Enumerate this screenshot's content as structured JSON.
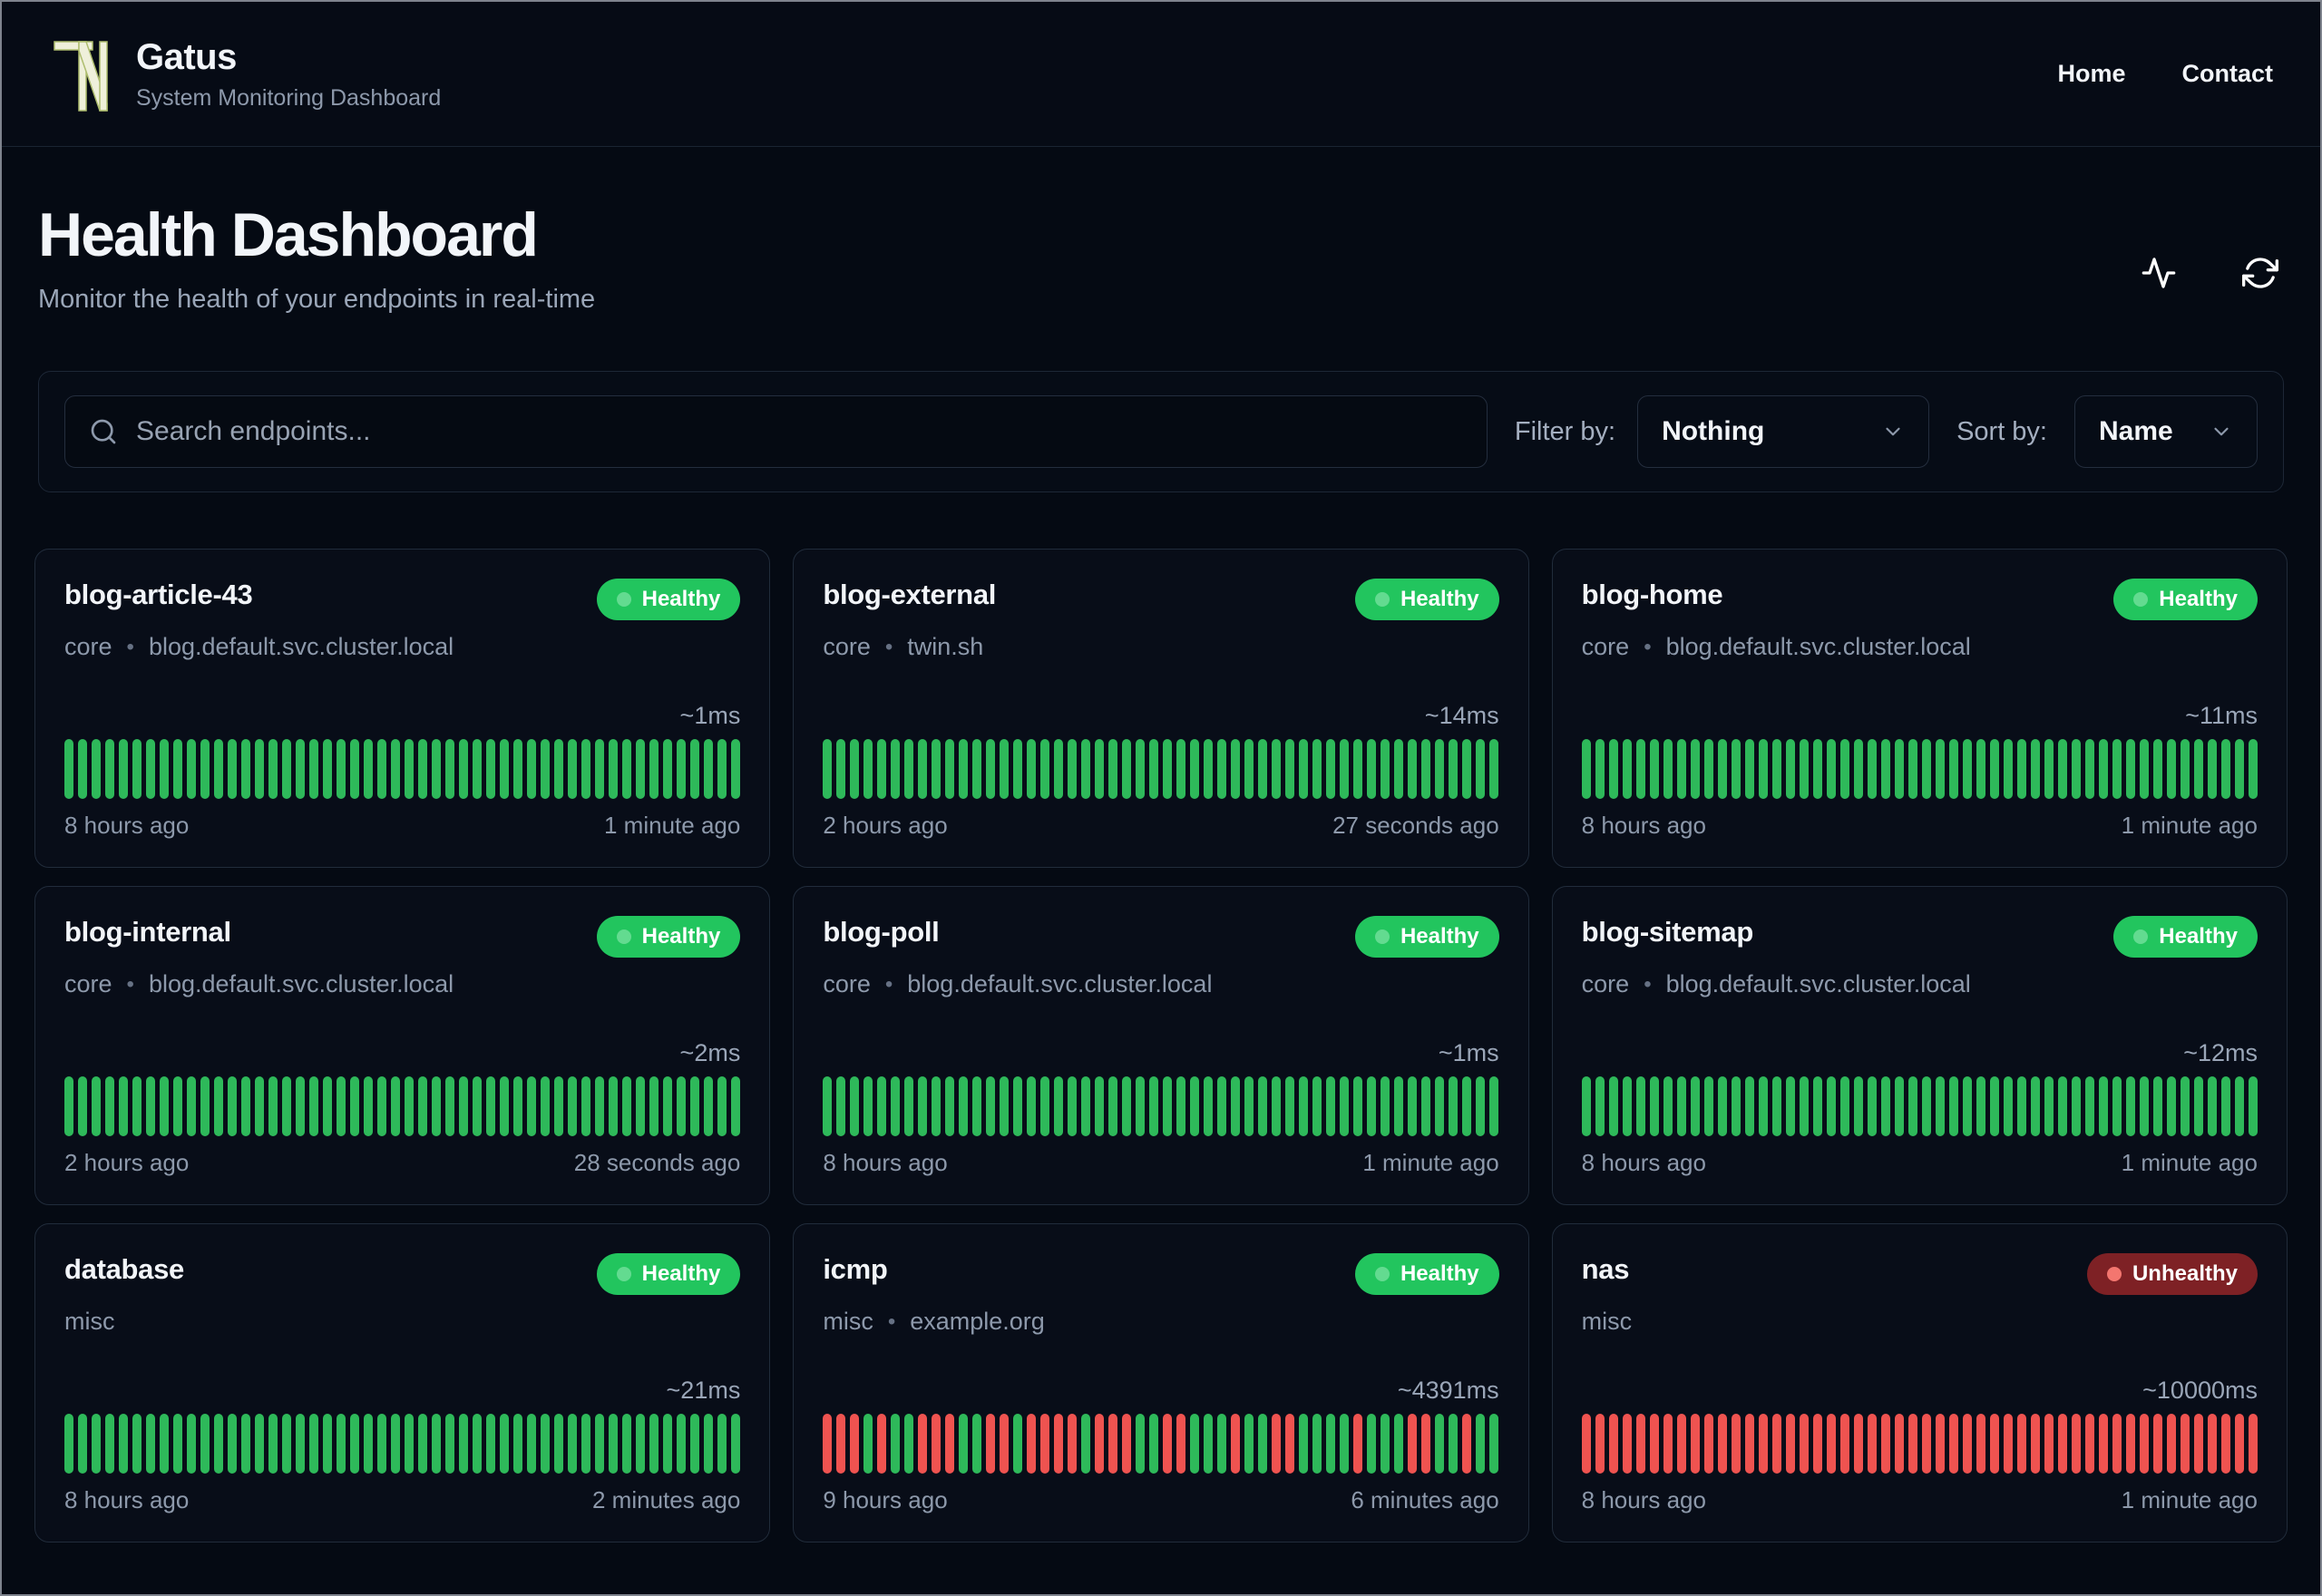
{
  "header": {
    "brand": "Gatus",
    "subtitle": "System Monitoring Dashboard",
    "nav": [
      {
        "label": "Home"
      },
      {
        "label": "Contact"
      }
    ]
  },
  "page": {
    "title": "Health Dashboard",
    "subtitle": "Monitor the health of your endpoints in real-time"
  },
  "toolbar": {
    "search_placeholder": "Search endpoints...",
    "filter_label": "Filter by:",
    "filter_value": "Nothing",
    "sort_label": "Sort by:",
    "sort_value": "Name"
  },
  "misc": {
    "meta_separator": "•"
  },
  "colors": {
    "page_bg": "#050a13",
    "card_bg": "#080d18",
    "card_border": "#212c3b",
    "healthy_badge": "#22c55e",
    "healthy_dot": "#63db90",
    "unhealthy_badge_bg": "#7e2125",
    "unhealthy_dot": "#f3766f",
    "bar_up": "#2eb95a",
    "bar_down": "#ef5350",
    "muted_text": "#8d99ab"
  },
  "cards": [
    {
      "name": "blog-article-43",
      "group": "core",
      "host": "blog.default.svc.cluster.local",
      "status": "Healthy",
      "latency": "~1ms",
      "oldest": "8 hours ago",
      "newest": "1 minute ago",
      "bar_pattern": "GGGGGGGGGGGGGGGGGGGGGGGGGGGGGGGGGGGGGGGGGGGGGGGGGG"
    },
    {
      "name": "blog-external",
      "group": "core",
      "host": "twin.sh",
      "status": "Healthy",
      "latency": "~14ms",
      "oldest": "2 hours ago",
      "newest": "27 seconds ago",
      "bar_pattern": "GGGGGGGGGGGGGGGGGGGGGGGGGGGGGGGGGGGGGGGGGGGGGGGGGG"
    },
    {
      "name": "blog-home",
      "group": "core",
      "host": "blog.default.svc.cluster.local",
      "status": "Healthy",
      "latency": "~11ms",
      "oldest": "8 hours ago",
      "newest": "1 minute ago",
      "bar_pattern": "GGGGGGGGGGGGGGGGGGGGGGGGGGGGGGGGGGGGGGGGGGGGGGGGGG"
    },
    {
      "name": "blog-internal",
      "group": "core",
      "host": "blog.default.svc.cluster.local",
      "status": "Healthy",
      "latency": "~2ms",
      "oldest": "2 hours ago",
      "newest": "28 seconds ago",
      "bar_pattern": "GGGGGGGGGGGGGGGGGGGGGGGGGGGGGGGGGGGGGGGGGGGGGGGGGG"
    },
    {
      "name": "blog-poll",
      "group": "core",
      "host": "blog.default.svc.cluster.local",
      "status": "Healthy",
      "latency": "~1ms",
      "oldest": "8 hours ago",
      "newest": "1 minute ago",
      "bar_pattern": "GGGGGGGGGGGGGGGGGGGGGGGGGGGGGGGGGGGGGGGGGGGGGGGGGG"
    },
    {
      "name": "blog-sitemap",
      "group": "core",
      "host": "blog.default.svc.cluster.local",
      "status": "Healthy",
      "latency": "~12ms",
      "oldest": "8 hours ago",
      "newest": "1 minute ago",
      "bar_pattern": "GGGGGGGGGGGGGGGGGGGGGGGGGGGGGGGGGGGGGGGGGGGGGGGGGG"
    },
    {
      "name": "database",
      "group": "misc",
      "host": "",
      "status": "Healthy",
      "latency": "~21ms",
      "oldest": "8 hours ago",
      "newest": "2 minutes ago",
      "bar_pattern": "GGGGGGGGGGGGGGGGGGGGGGGGGGGGGGGGGGGGGGGGGGGGGGGGGG"
    },
    {
      "name": "icmp",
      "group": "misc",
      "host": "example.org",
      "status": "Healthy",
      "latency": "~4391ms",
      "oldest": "9 hours ago",
      "newest": "6 minutes ago",
      "bar_pattern": "RRRGRGGRRRGGRRGRRRRGRRRGGRRGGGRGGRRGGGGRGGGRRGGRGG"
    },
    {
      "name": "nas",
      "group": "misc",
      "host": "",
      "status": "Unhealthy",
      "latency": "~10000ms",
      "oldest": "8 hours ago",
      "newest": "1 minute ago",
      "bar_pattern": "RRRRRRRRRRRRRRRRRRRRRRRRRRRRRRRRRRRRRRRRRRRRRRRRRR"
    }
  ]
}
